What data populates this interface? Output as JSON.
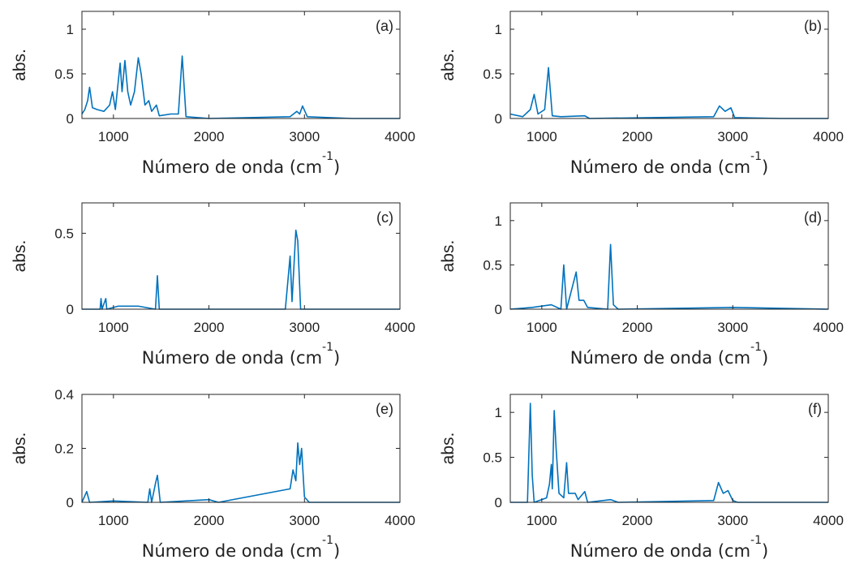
{
  "chart_data": [
    {
      "type": "line",
      "panel_label": "(a)",
      "ylabel": "abs.",
      "xlabel": "Número de onda (cm",
      "xlabel_sup": "-1",
      "xlabel_end": ")",
      "xlim": [
        670,
        4000
      ],
      "xticks": [
        1000,
        2000,
        3000,
        4000
      ],
      "ylim": [
        0,
        1.2
      ],
      "yticks": [
        0,
        0.5,
        1
      ],
      "x": [
        670,
        700,
        730,
        750,
        780,
        830,
        900,
        960,
        990,
        1020,
        1070,
        1090,
        1120,
        1150,
        1180,
        1220,
        1260,
        1290,
        1330,
        1370,
        1400,
        1450,
        1480,
        1600,
        1680,
        1720,
        1760,
        2000,
        2850,
        2920,
        2950,
        2980,
        3030,
        3500,
        4000
      ],
      "series": [
        {
          "color": "#0072bd",
          "values": [
            0.05,
            0.1,
            0.2,
            0.35,
            0.12,
            0.1,
            0.08,
            0.15,
            0.3,
            0.1,
            0.62,
            0.3,
            0.65,
            0.3,
            0.15,
            0.3,
            0.68,
            0.5,
            0.15,
            0.2,
            0.08,
            0.15,
            0.03,
            0.05,
            0.05,
            0.7,
            0.02,
            0,
            0.02,
            0.08,
            0.05,
            0.14,
            0.02,
            0,
            0
          ]
        }
      ]
    },
    {
      "type": "line",
      "panel_label": "(b)",
      "ylabel": "abs.",
      "xlabel": "Número de onda (cm",
      "xlabel_sup": "-1",
      "xlabel_end": ")",
      "xlim": [
        670,
        4000
      ],
      "xticks": [
        1000,
        2000,
        3000,
        4000
      ],
      "ylim": [
        0,
        1.2
      ],
      "yticks": [
        0,
        0.5,
        1
      ],
      "x": [
        670,
        800,
        880,
        920,
        960,
        1030,
        1070,
        1110,
        1200,
        1450,
        1500,
        2800,
        2860,
        2920,
        2980,
        3020,
        3500,
        4000
      ],
      "series": [
        {
          "color": "#0072bd",
          "values": [
            0.05,
            0.02,
            0.1,
            0.27,
            0.05,
            0.1,
            0.57,
            0.03,
            0.02,
            0.03,
            0,
            0.02,
            0.14,
            0.08,
            0.12,
            0.01,
            0,
            0
          ]
        }
      ]
    },
    {
      "type": "line",
      "panel_label": "(c)",
      "ylabel": "abs.",
      "xlabel": "Número de onda (cm",
      "xlabel_sup": "-1",
      "xlabel_end": ")",
      "xlim": [
        670,
        4000
      ],
      "xticks": [
        1000,
        2000,
        3000,
        4000
      ],
      "ylim": [
        0,
        0.7
      ],
      "yticks": [
        0,
        0.5
      ],
      "x": [
        670,
        860,
        870,
        880,
        920,
        930,
        1050,
        1260,
        1440,
        1460,
        1480,
        2800,
        2850,
        2870,
        2910,
        2930,
        2960,
        4000
      ],
      "series": [
        {
          "color": "#0072bd",
          "values": [
            0,
            0,
            0.07,
            0,
            0.07,
            0,
            0.02,
            0.02,
            0,
            0.22,
            0,
            0,
            0.35,
            0.05,
            0.52,
            0.45,
            0,
            0
          ]
        }
      ]
    },
    {
      "type": "line",
      "panel_label": "(d)",
      "ylabel": "abs.",
      "xlabel": "Número de onda (cm",
      "xlabel_sup": "-1",
      "xlabel_end": ")",
      "xlim": [
        670,
        4000
      ],
      "xticks": [
        1000,
        2000,
        3000,
        4000
      ],
      "ylim": [
        0,
        1.2
      ],
      "yticks": [
        0,
        0.5,
        1
      ],
      "x": [
        670,
        900,
        1100,
        1200,
        1230,
        1260,
        1360,
        1390,
        1440,
        1480,
        1690,
        1720,
        1750,
        1800,
        3000,
        4000
      ],
      "series": [
        {
          "color": "#0072bd",
          "values": [
            0,
            0.02,
            0.05,
            0,
            0.5,
            0,
            0.42,
            0.1,
            0.1,
            0.02,
            0,
            0.73,
            0.05,
            0,
            0.02,
            0
          ]
        }
      ]
    },
    {
      "type": "line",
      "panel_label": "(e)",
      "ylabel": "abs.",
      "xlabel": "Número de onda (cm",
      "xlabel_sup": "-1",
      "xlabel_end": ")",
      "xlim": [
        670,
        4000
      ],
      "xticks": [
        1000,
        2000,
        3000,
        4000
      ],
      "ylim": [
        0,
        0.4
      ],
      "yticks": [
        0,
        0.2,
        0.4
      ],
      "x": [
        670,
        720,
        750,
        1000,
        1360,
        1380,
        1400,
        1440,
        1460,
        1490,
        2000,
        2100,
        2850,
        2880,
        2910,
        2930,
        2950,
        2970,
        3000,
        3050,
        4000
      ],
      "series": [
        {
          "color": "#0072bd",
          "values": [
            0,
            0.04,
            0,
            0.005,
            0,
            0.05,
            0,
            0.07,
            0.1,
            0,
            0.01,
            0,
            0.05,
            0.12,
            0.08,
            0.22,
            0.14,
            0.2,
            0.02,
            0,
            0
          ]
        }
      ]
    },
    {
      "type": "line",
      "panel_label": "(f)",
      "ylabel": "abs.",
      "xlabel": "Número de onda (cm",
      "xlabel_sup": "-1",
      "xlabel_end": ")",
      "xlim": [
        670,
        4000
      ],
      "xticks": [
        1000,
        2000,
        3000,
        4000
      ],
      "ylim": [
        0,
        1.2
      ],
      "yticks": [
        0,
        0.5,
        1
      ],
      "x": [
        670,
        850,
        880,
        900,
        920,
        1050,
        1080,
        1100,
        1110,
        1130,
        1150,
        1180,
        1230,
        1260,
        1280,
        1350,
        1380,
        1450,
        1480,
        1720,
        1800,
        2800,
        2850,
        2900,
        2950,
        3000,
        3050,
        4000
      ],
      "series": [
        {
          "color": "#0072bd",
          "values": [
            0,
            0,
            1.1,
            0.3,
            0,
            0.05,
            0.2,
            0.42,
            0.15,
            1.02,
            0.6,
            0.1,
            0.05,
            0.44,
            0.1,
            0.1,
            0.03,
            0.12,
            0,
            0.03,
            0,
            0.02,
            0.22,
            0.1,
            0.13,
            0.02,
            0,
            0
          ]
        }
      ]
    }
  ]
}
